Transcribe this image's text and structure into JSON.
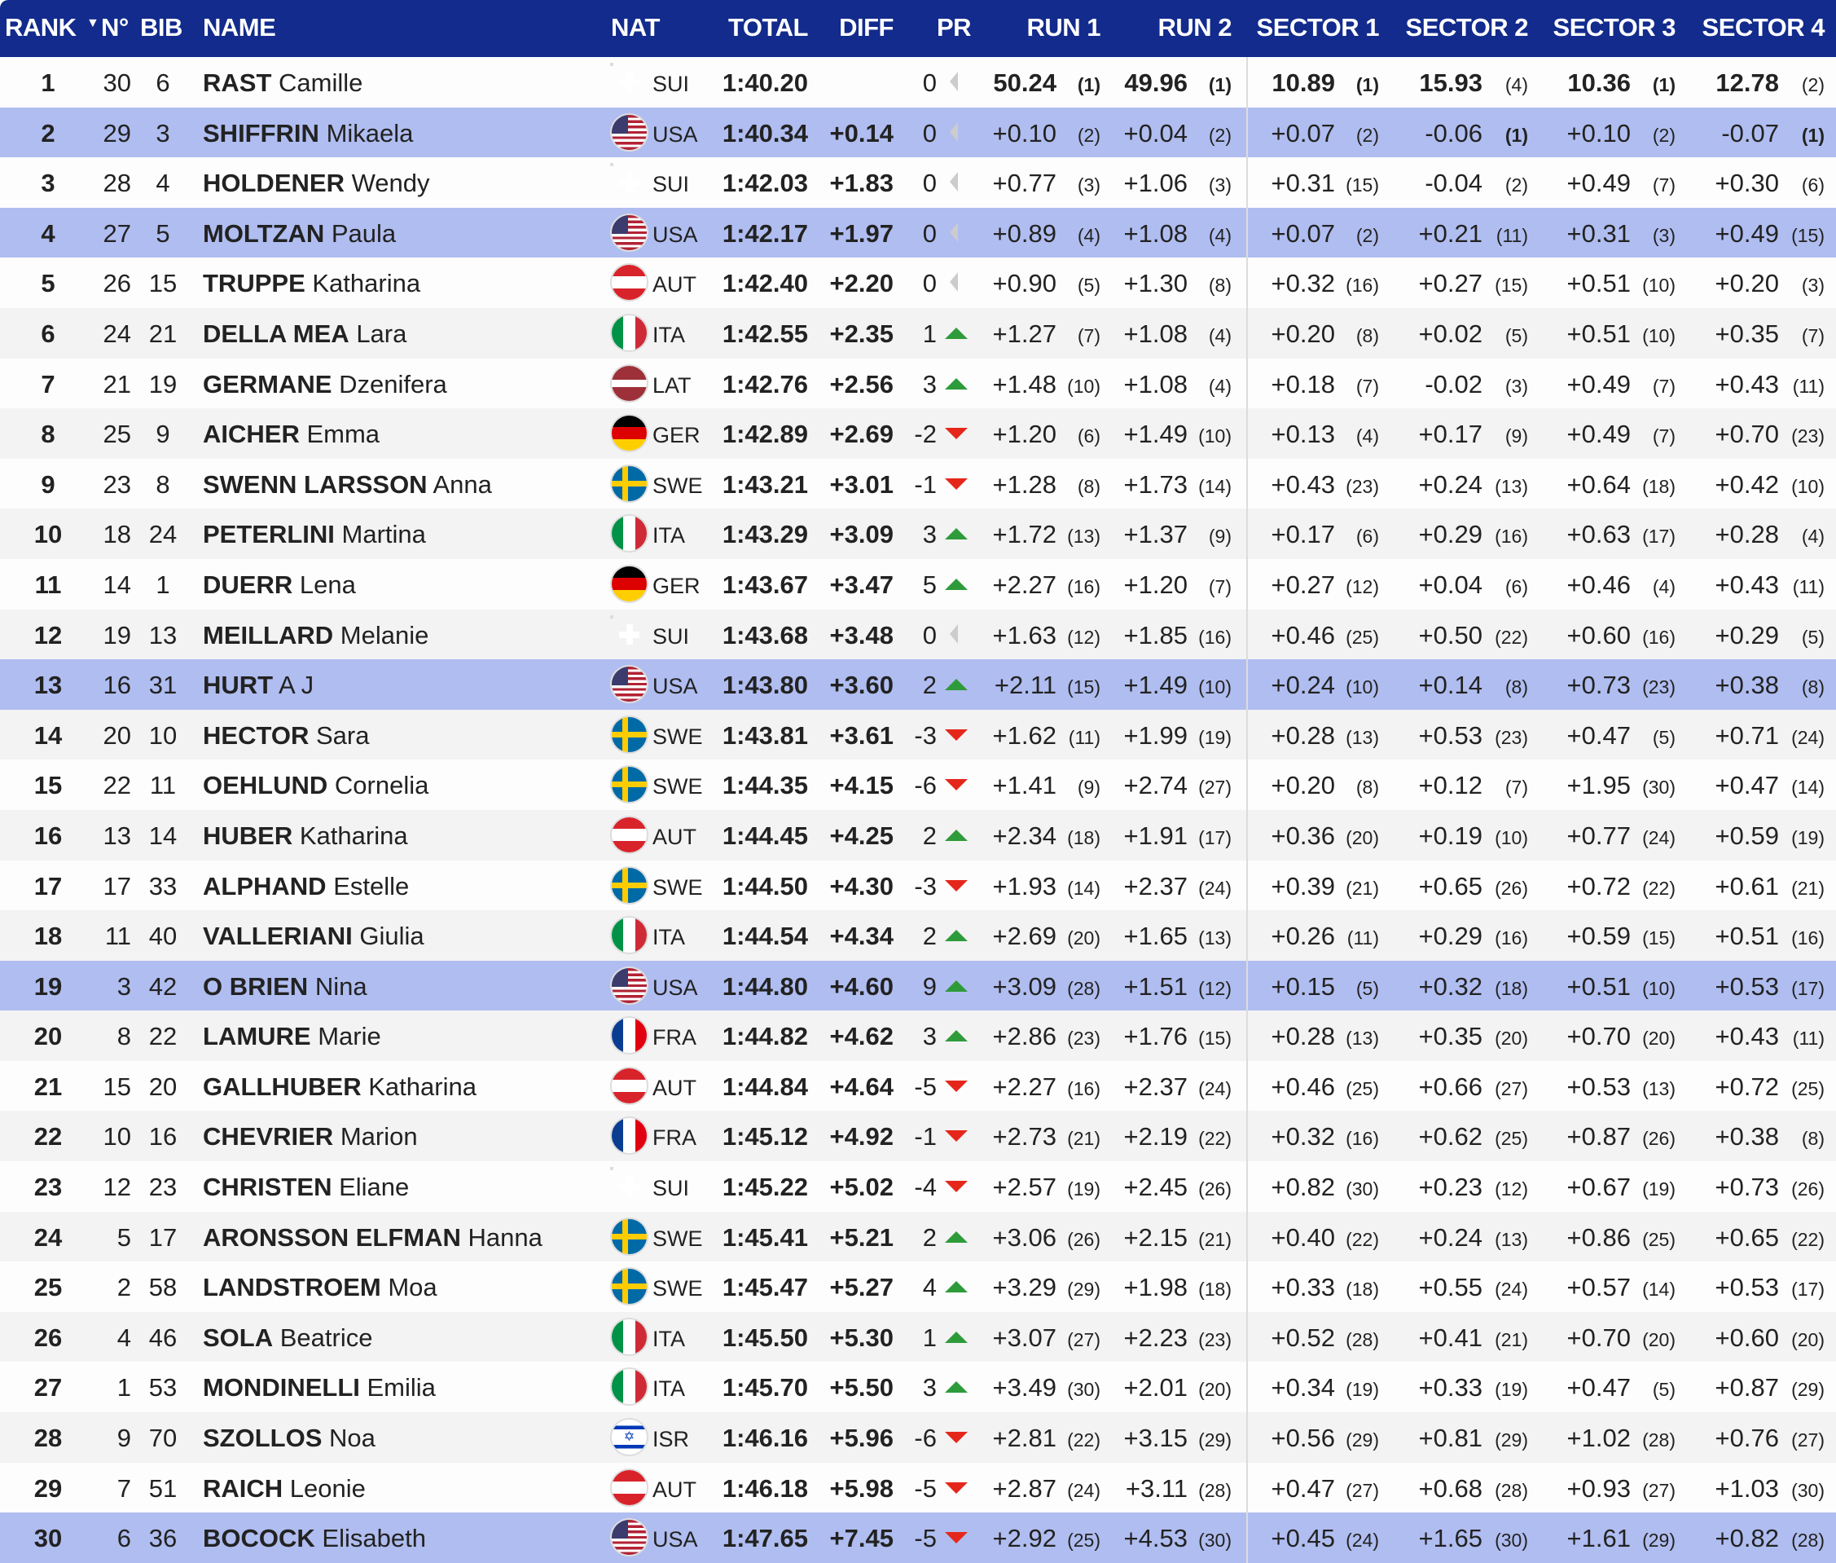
{
  "header": {
    "rank": "RANK",
    "no": "N°",
    "bib": "BIB",
    "name": "NAME",
    "nat": "NAT",
    "total": "TOTAL",
    "diff": "DIFF",
    "pr": "PR",
    "run1": "RUN 1",
    "run2": "RUN 2",
    "s1": "SECTOR 1",
    "s2": "SECTOR 2",
    "s3": "SECTOR 3",
    "s4": "SECTOR 4",
    "sort_icon": "sort-down-icon"
  },
  "colors": {
    "header": "#122b8c",
    "highlight": "#b0bdf0",
    "up": "#2e9b3a",
    "down": "#e5271b"
  },
  "rows": [
    {
      "rank": "1",
      "no": "30",
      "bib": "6",
      "last": "RAST",
      "first": "Camille",
      "nat": "SUI",
      "total": "1:40.20",
      "diff": "",
      "pr": "0",
      "trend": "none",
      "run1": "50.24",
      "run1_rank": "(1)",
      "run2": "49.96",
      "run2_rank": "(1)",
      "s1": "10.89",
      "s1_rank": "(1)",
      "s2": "15.93",
      "s2_rank": "(4)",
      "s3": "10.36",
      "s3_rank": "(1)",
      "s4": "12.78",
      "s4_rank": "(2)",
      "hl": false,
      "leader": true
    },
    {
      "rank": "2",
      "no": "29",
      "bib": "3",
      "last": "SHIFFRIN",
      "first": "Mikaela",
      "nat": "USA",
      "total": "1:40.34",
      "diff": "+0.14",
      "pr": "0",
      "trend": "none",
      "run1": "+0.10",
      "run1_rank": "(2)",
      "run2": "+0.04",
      "run2_rank": "(2)",
      "s1": "+0.07",
      "s1_rank": "(2)",
      "s2": "-0.06",
      "s2_rank": "(1)",
      "s3": "+0.10",
      "s3_rank": "(2)",
      "s4": "-0.07",
      "s4_rank": "(1)",
      "hl": true
    },
    {
      "rank": "3",
      "no": "28",
      "bib": "4",
      "last": "HOLDENER",
      "first": "Wendy",
      "nat": "SUI",
      "total": "1:42.03",
      "diff": "+1.83",
      "pr": "0",
      "trend": "none",
      "run1": "+0.77",
      "run1_rank": "(3)",
      "run2": "+1.06",
      "run2_rank": "(3)",
      "s1": "+0.31",
      "s1_rank": "(15)",
      "s2": "-0.04",
      "s2_rank": "(2)",
      "s3": "+0.49",
      "s3_rank": "(7)",
      "s4": "+0.30",
      "s4_rank": "(6)",
      "hl": false
    },
    {
      "rank": "4",
      "no": "27",
      "bib": "5",
      "last": "MOLTZAN",
      "first": "Paula",
      "nat": "USA",
      "total": "1:42.17",
      "diff": "+1.97",
      "pr": "0",
      "trend": "none",
      "run1": "+0.89",
      "run1_rank": "(4)",
      "run2": "+1.08",
      "run2_rank": "(4)",
      "s1": "+0.07",
      "s1_rank": "(2)",
      "s2": "+0.21",
      "s2_rank": "(11)",
      "s3": "+0.31",
      "s3_rank": "(3)",
      "s4": "+0.49",
      "s4_rank": "(15)",
      "hl": true
    },
    {
      "rank": "5",
      "no": "26",
      "bib": "15",
      "last": "TRUPPE",
      "first": "Katharina",
      "nat": "AUT",
      "total": "1:42.40",
      "diff": "+2.20",
      "pr": "0",
      "trend": "none",
      "run1": "+0.90",
      "run1_rank": "(5)",
      "run2": "+1.30",
      "run2_rank": "(8)",
      "s1": "+0.32",
      "s1_rank": "(16)",
      "s2": "+0.27",
      "s2_rank": "(15)",
      "s3": "+0.51",
      "s3_rank": "(10)",
      "s4": "+0.20",
      "s4_rank": "(3)",
      "hl": false
    },
    {
      "rank": "6",
      "no": "24",
      "bib": "21",
      "last": "DELLA MEA",
      "first": "Lara",
      "nat": "ITA",
      "total": "1:42.55",
      "diff": "+2.35",
      "pr": "1",
      "trend": "up",
      "run1": "+1.27",
      "run1_rank": "(7)",
      "run2": "+1.08",
      "run2_rank": "(4)",
      "s1": "+0.20",
      "s1_rank": "(8)",
      "s2": "+0.02",
      "s2_rank": "(5)",
      "s3": "+0.51",
      "s3_rank": "(10)",
      "s4": "+0.35",
      "s4_rank": "(7)",
      "hl": false
    },
    {
      "rank": "7",
      "no": "21",
      "bib": "19",
      "last": "GERMANE",
      "first": "Dzenifera",
      "nat": "LAT",
      "total": "1:42.76",
      "diff": "+2.56",
      "pr": "3",
      "trend": "up",
      "run1": "+1.48",
      "run1_rank": "(10)",
      "run2": "+1.08",
      "run2_rank": "(4)",
      "s1": "+0.18",
      "s1_rank": "(7)",
      "s2": "-0.02",
      "s2_rank": "(3)",
      "s3": "+0.49",
      "s3_rank": "(7)",
      "s4": "+0.43",
      "s4_rank": "(11)",
      "hl": false
    },
    {
      "rank": "8",
      "no": "25",
      "bib": "9",
      "last": "AICHER",
      "first": "Emma",
      "nat": "GER",
      "total": "1:42.89",
      "diff": "+2.69",
      "pr": "-2",
      "trend": "down",
      "run1": "+1.20",
      "run1_rank": "(6)",
      "run2": "+1.49",
      "run2_rank": "(10)",
      "s1": "+0.13",
      "s1_rank": "(4)",
      "s2": "+0.17",
      "s2_rank": "(9)",
      "s3": "+0.49",
      "s3_rank": "(7)",
      "s4": "+0.70",
      "s4_rank": "(23)",
      "hl": false
    },
    {
      "rank": "9",
      "no": "23",
      "bib": "8",
      "last": "SWENN LARSSON",
      "first": "Anna",
      "nat": "SWE",
      "total": "1:43.21",
      "diff": "+3.01",
      "pr": "-1",
      "trend": "down",
      "run1": "+1.28",
      "run1_rank": "(8)",
      "run2": "+1.73",
      "run2_rank": "(14)",
      "s1": "+0.43",
      "s1_rank": "(23)",
      "s2": "+0.24",
      "s2_rank": "(13)",
      "s3": "+0.64",
      "s3_rank": "(18)",
      "s4": "+0.42",
      "s4_rank": "(10)",
      "hl": false
    },
    {
      "rank": "10",
      "no": "18",
      "bib": "24",
      "last": "PETERLINI",
      "first": "Martina",
      "nat": "ITA",
      "total": "1:43.29",
      "diff": "+3.09",
      "pr": "3",
      "trend": "up",
      "run1": "+1.72",
      "run1_rank": "(13)",
      "run2": "+1.37",
      "run2_rank": "(9)",
      "s1": "+0.17",
      "s1_rank": "(6)",
      "s2": "+0.29",
      "s2_rank": "(16)",
      "s3": "+0.63",
      "s3_rank": "(17)",
      "s4": "+0.28",
      "s4_rank": "(4)",
      "hl": false
    },
    {
      "rank": "11",
      "no": "14",
      "bib": "1",
      "last": "DUERR",
      "first": "Lena",
      "nat": "GER",
      "total": "1:43.67",
      "diff": "+3.47",
      "pr": "5",
      "trend": "up",
      "run1": "+2.27",
      "run1_rank": "(16)",
      "run2": "+1.20",
      "run2_rank": "(7)",
      "s1": "+0.27",
      "s1_rank": "(12)",
      "s2": "+0.04",
      "s2_rank": "(6)",
      "s3": "+0.46",
      "s3_rank": "(4)",
      "s4": "+0.43",
      "s4_rank": "(11)",
      "hl": false
    },
    {
      "rank": "12",
      "no": "19",
      "bib": "13",
      "last": "MEILLARD",
      "first": "Melanie",
      "nat": "SUI",
      "total": "1:43.68",
      "diff": "+3.48",
      "pr": "0",
      "trend": "none",
      "run1": "+1.63",
      "run1_rank": "(12)",
      "run2": "+1.85",
      "run2_rank": "(16)",
      "s1": "+0.46",
      "s1_rank": "(25)",
      "s2": "+0.50",
      "s2_rank": "(22)",
      "s3": "+0.60",
      "s3_rank": "(16)",
      "s4": "+0.29",
      "s4_rank": "(5)",
      "hl": false
    },
    {
      "rank": "13",
      "no": "16",
      "bib": "31",
      "last": "HURT",
      "first": "A J",
      "nat": "USA",
      "total": "1:43.80",
      "diff": "+3.60",
      "pr": "2",
      "trend": "up",
      "run1": "+2.11",
      "run1_rank": "(15)",
      "run2": "+1.49",
      "run2_rank": "(10)",
      "s1": "+0.24",
      "s1_rank": "(10)",
      "s2": "+0.14",
      "s2_rank": "(8)",
      "s3": "+0.73",
      "s3_rank": "(23)",
      "s4": "+0.38",
      "s4_rank": "(8)",
      "hl": true
    },
    {
      "rank": "14",
      "no": "20",
      "bib": "10",
      "last": "HECTOR",
      "first": "Sara",
      "nat": "SWE",
      "total": "1:43.81",
      "diff": "+3.61",
      "pr": "-3",
      "trend": "down",
      "run1": "+1.62",
      "run1_rank": "(11)",
      "run2": "+1.99",
      "run2_rank": "(19)",
      "s1": "+0.28",
      "s1_rank": "(13)",
      "s2": "+0.53",
      "s2_rank": "(23)",
      "s3": "+0.47",
      "s3_rank": "(5)",
      "s4": "+0.71",
      "s4_rank": "(24)",
      "hl": false
    },
    {
      "rank": "15",
      "no": "22",
      "bib": "11",
      "last": "OEHLUND",
      "first": "Cornelia",
      "nat": "SWE",
      "total": "1:44.35",
      "diff": "+4.15",
      "pr": "-6",
      "trend": "down",
      "run1": "+1.41",
      "run1_rank": "(9)",
      "run2": "+2.74",
      "run2_rank": "(27)",
      "s1": "+0.20",
      "s1_rank": "(8)",
      "s2": "+0.12",
      "s2_rank": "(7)",
      "s3": "+1.95",
      "s3_rank": "(30)",
      "s4": "+0.47",
      "s4_rank": "(14)",
      "hl": false
    },
    {
      "rank": "16",
      "no": "13",
      "bib": "14",
      "last": "HUBER",
      "first": "Katharina",
      "nat": "AUT",
      "total": "1:44.45",
      "diff": "+4.25",
      "pr": "2",
      "trend": "up",
      "run1": "+2.34",
      "run1_rank": "(18)",
      "run2": "+1.91",
      "run2_rank": "(17)",
      "s1": "+0.36",
      "s1_rank": "(20)",
      "s2": "+0.19",
      "s2_rank": "(10)",
      "s3": "+0.77",
      "s3_rank": "(24)",
      "s4": "+0.59",
      "s4_rank": "(19)",
      "hl": false
    },
    {
      "rank": "17",
      "no": "17",
      "bib": "33",
      "last": "ALPHAND",
      "first": "Estelle",
      "nat": "SWE",
      "total": "1:44.50",
      "diff": "+4.30",
      "pr": "-3",
      "trend": "down",
      "run1": "+1.93",
      "run1_rank": "(14)",
      "run2": "+2.37",
      "run2_rank": "(24)",
      "s1": "+0.39",
      "s1_rank": "(21)",
      "s2": "+0.65",
      "s2_rank": "(26)",
      "s3": "+0.72",
      "s3_rank": "(22)",
      "s4": "+0.61",
      "s4_rank": "(21)",
      "hl": false
    },
    {
      "rank": "18",
      "no": "11",
      "bib": "40",
      "last": "VALLERIANI",
      "first": "Giulia",
      "nat": "ITA",
      "total": "1:44.54",
      "diff": "+4.34",
      "pr": "2",
      "trend": "up",
      "run1": "+2.69",
      "run1_rank": "(20)",
      "run2": "+1.65",
      "run2_rank": "(13)",
      "s1": "+0.26",
      "s1_rank": "(11)",
      "s2": "+0.29",
      "s2_rank": "(16)",
      "s3": "+0.59",
      "s3_rank": "(15)",
      "s4": "+0.51",
      "s4_rank": "(16)",
      "hl": false
    },
    {
      "rank": "19",
      "no": "3",
      "bib": "42",
      "last": "O BRIEN",
      "first": "Nina",
      "nat": "USA",
      "total": "1:44.80",
      "diff": "+4.60",
      "pr": "9",
      "trend": "up",
      "run1": "+3.09",
      "run1_rank": "(28)",
      "run2": "+1.51",
      "run2_rank": "(12)",
      "s1": "+0.15",
      "s1_rank": "(5)",
      "s2": "+0.32",
      "s2_rank": "(18)",
      "s3": "+0.51",
      "s3_rank": "(10)",
      "s4": "+0.53",
      "s4_rank": "(17)",
      "hl": true
    },
    {
      "rank": "20",
      "no": "8",
      "bib": "22",
      "last": "LAMURE",
      "first": "Marie",
      "nat": "FRA",
      "total": "1:44.82",
      "diff": "+4.62",
      "pr": "3",
      "trend": "up",
      "run1": "+2.86",
      "run1_rank": "(23)",
      "run2": "+1.76",
      "run2_rank": "(15)",
      "s1": "+0.28",
      "s1_rank": "(13)",
      "s2": "+0.35",
      "s2_rank": "(20)",
      "s3": "+0.70",
      "s3_rank": "(20)",
      "s4": "+0.43",
      "s4_rank": "(11)",
      "hl": false
    },
    {
      "rank": "21",
      "no": "15",
      "bib": "20",
      "last": "GALLHUBER",
      "first": "Katharina",
      "nat": "AUT",
      "total": "1:44.84",
      "diff": "+4.64",
      "pr": "-5",
      "trend": "down",
      "run1": "+2.27",
      "run1_rank": "(16)",
      "run2": "+2.37",
      "run2_rank": "(24)",
      "s1": "+0.46",
      "s1_rank": "(25)",
      "s2": "+0.66",
      "s2_rank": "(27)",
      "s3": "+0.53",
      "s3_rank": "(13)",
      "s4": "+0.72",
      "s4_rank": "(25)",
      "hl": false
    },
    {
      "rank": "22",
      "no": "10",
      "bib": "16",
      "last": "CHEVRIER",
      "first": "Marion",
      "nat": "FRA",
      "total": "1:45.12",
      "diff": "+4.92",
      "pr": "-1",
      "trend": "down",
      "run1": "+2.73",
      "run1_rank": "(21)",
      "run2": "+2.19",
      "run2_rank": "(22)",
      "s1": "+0.32",
      "s1_rank": "(16)",
      "s2": "+0.62",
      "s2_rank": "(25)",
      "s3": "+0.87",
      "s3_rank": "(26)",
      "s4": "+0.38",
      "s4_rank": "(8)",
      "hl": false
    },
    {
      "rank": "23",
      "no": "12",
      "bib": "23",
      "last": "CHRISTEN",
      "first": "Eliane",
      "nat": "SUI",
      "total": "1:45.22",
      "diff": "+5.02",
      "pr": "-4",
      "trend": "down",
      "run1": "+2.57",
      "run1_rank": "(19)",
      "run2": "+2.45",
      "run2_rank": "(26)",
      "s1": "+0.82",
      "s1_rank": "(30)",
      "s2": "+0.23",
      "s2_rank": "(12)",
      "s3": "+0.67",
      "s3_rank": "(19)",
      "s4": "+0.73",
      "s4_rank": "(26)",
      "hl": false
    },
    {
      "rank": "24",
      "no": "5",
      "bib": "17",
      "last": "ARONSSON ELFMAN",
      "first": "Hanna",
      "nat": "SWE",
      "total": "1:45.41",
      "diff": "+5.21",
      "pr": "2",
      "trend": "up",
      "run1": "+3.06",
      "run1_rank": "(26)",
      "run2": "+2.15",
      "run2_rank": "(21)",
      "s1": "+0.40",
      "s1_rank": "(22)",
      "s2": "+0.24",
      "s2_rank": "(13)",
      "s3": "+0.86",
      "s3_rank": "(25)",
      "s4": "+0.65",
      "s4_rank": "(22)",
      "hl": false
    },
    {
      "rank": "25",
      "no": "2",
      "bib": "58",
      "last": "LANDSTROEM",
      "first": "Moa",
      "nat": "SWE",
      "total": "1:45.47",
      "diff": "+5.27",
      "pr": "4",
      "trend": "up",
      "run1": "+3.29",
      "run1_rank": "(29)",
      "run2": "+1.98",
      "run2_rank": "(18)",
      "s1": "+0.33",
      "s1_rank": "(18)",
      "s2": "+0.55",
      "s2_rank": "(24)",
      "s3": "+0.57",
      "s3_rank": "(14)",
      "s4": "+0.53",
      "s4_rank": "(17)",
      "hl": false
    },
    {
      "rank": "26",
      "no": "4",
      "bib": "46",
      "last": "SOLA",
      "first": "Beatrice",
      "nat": "ITA",
      "total": "1:45.50",
      "diff": "+5.30",
      "pr": "1",
      "trend": "up",
      "run1": "+3.07",
      "run1_rank": "(27)",
      "run2": "+2.23",
      "run2_rank": "(23)",
      "s1": "+0.52",
      "s1_rank": "(28)",
      "s2": "+0.41",
      "s2_rank": "(21)",
      "s3": "+0.70",
      "s3_rank": "(20)",
      "s4": "+0.60",
      "s4_rank": "(20)",
      "hl": false
    },
    {
      "rank": "27",
      "no": "1",
      "bib": "53",
      "last": "MONDINELLI",
      "first": "Emilia",
      "nat": "ITA",
      "total": "1:45.70",
      "diff": "+5.50",
      "pr": "3",
      "trend": "up",
      "run1": "+3.49",
      "run1_rank": "(30)",
      "run2": "+2.01",
      "run2_rank": "(20)",
      "s1": "+0.34",
      "s1_rank": "(19)",
      "s2": "+0.33",
      "s2_rank": "(19)",
      "s3": "+0.47",
      "s3_rank": "(5)",
      "s4": "+0.87",
      "s4_rank": "(29)",
      "hl": false
    },
    {
      "rank": "28",
      "no": "9",
      "bib": "70",
      "last": "SZOLLOS",
      "first": "Noa",
      "nat": "ISR",
      "total": "1:46.16",
      "diff": "+5.96",
      "pr": "-6",
      "trend": "down",
      "run1": "+2.81",
      "run1_rank": "(22)",
      "run2": "+3.15",
      "run2_rank": "(29)",
      "s1": "+0.56",
      "s1_rank": "(29)",
      "s2": "+0.81",
      "s2_rank": "(29)",
      "s3": "+1.02",
      "s3_rank": "(28)",
      "s4": "+0.76",
      "s4_rank": "(27)",
      "hl": false
    },
    {
      "rank": "29",
      "no": "7",
      "bib": "51",
      "last": "RAICH",
      "first": "Leonie",
      "nat": "AUT",
      "total": "1:46.18",
      "diff": "+5.98",
      "pr": "-5",
      "trend": "down",
      "run1": "+2.87",
      "run1_rank": "(24)",
      "run2": "+3.11",
      "run2_rank": "(28)",
      "s1": "+0.47",
      "s1_rank": "(27)",
      "s2": "+0.68",
      "s2_rank": "(28)",
      "s3": "+0.93",
      "s3_rank": "(27)",
      "s4": "+1.03",
      "s4_rank": "(30)",
      "hl": false
    },
    {
      "rank": "30",
      "no": "6",
      "bib": "36",
      "last": "BOCOCK",
      "first": "Elisabeth",
      "nat": "USA",
      "total": "1:47.65",
      "diff": "+7.45",
      "pr": "-5",
      "trend": "down",
      "run1": "+2.92",
      "run1_rank": "(25)",
      "run2": "+4.53",
      "run2_rank": "(30)",
      "s1": "+0.45",
      "s1_rank": "(24)",
      "s2": "+1.65",
      "s2_rank": "(30)",
      "s3": "+1.61",
      "s3_rank": "(29)",
      "s4": "+0.82",
      "s4_rank": "(28)",
      "hl": true
    }
  ]
}
